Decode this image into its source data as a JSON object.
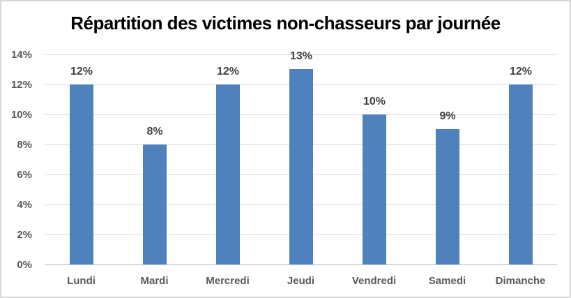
{
  "chart_data": {
    "type": "bar",
    "title": "Répartition des victimes non-chasseurs par journée",
    "categories": [
      "Lundi",
      "Mardi",
      "Mercredi",
      "Jeudi",
      "Vendredi",
      "Samedi",
      "Dimanche"
    ],
    "values": [
      12,
      8,
      12,
      13,
      10,
      9,
      12
    ],
    "data_labels": [
      "12%",
      "8%",
      "12%",
      "13%",
      "10%",
      "9%",
      "12%"
    ],
    "y_ticks": [
      "0%",
      "2%",
      "4%",
      "6%",
      "8%",
      "10%",
      "12%",
      "14%"
    ],
    "y_tick_values": [
      0,
      2,
      4,
      6,
      8,
      10,
      12,
      14
    ],
    "ylim": [
      0,
      14
    ],
    "xlabel": "",
    "ylabel": "",
    "grid": "horizontal",
    "legend": "none",
    "colors": {
      "bar": "#4f81bd",
      "gridline": "#d9d9d9",
      "axis_line": "#d9d9d9",
      "axis_label": "#595959",
      "data_label": "#404040",
      "title": "#000000",
      "border": "#d7d7d7",
      "background": "#ffffff"
    }
  }
}
